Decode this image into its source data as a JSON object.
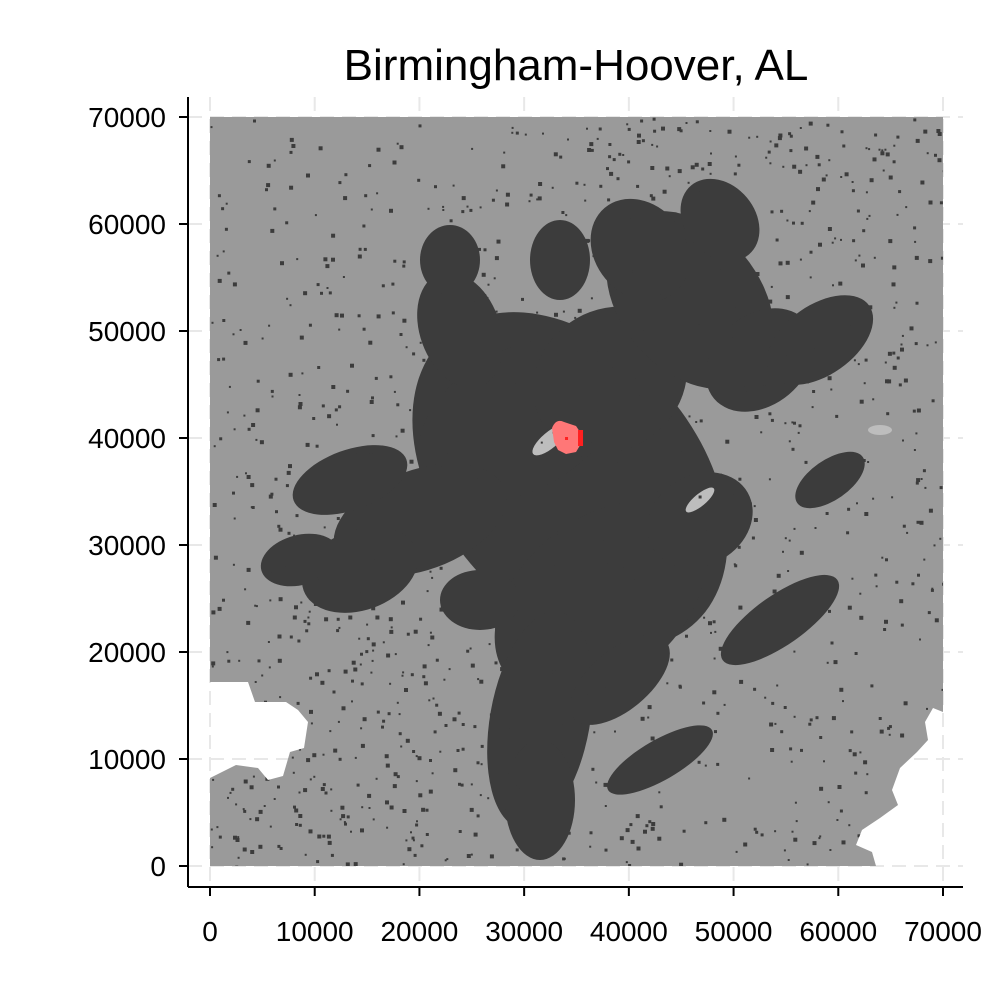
{
  "chart_data": {
    "type": "heatmap",
    "title": "Birmingham-Hoover, AL",
    "xlabel": "",
    "ylabel": "",
    "xlim": [
      0,
      70000
    ],
    "ylim": [
      0,
      70000
    ],
    "x_ticks": [
      0,
      10000,
      20000,
      30000,
      40000,
      50000,
      60000,
      70000
    ],
    "y_ticks": [
      0,
      10000,
      20000,
      30000,
      40000,
      50000,
      60000,
      70000
    ],
    "x_tick_labels": [
      "0",
      "10000",
      "20000",
      "30000",
      "40000",
      "50000",
      "60000",
      "70000"
    ],
    "y_tick_labels": [
      "0",
      "10000",
      "20000",
      "30000",
      "40000",
      "50000",
      "60000",
      "70000"
    ],
    "grid": true,
    "legend": "none",
    "colors": {
      "background_land": "#9a9a9a",
      "developed": "#3c3c3c",
      "light_patches": "#bdbdbd",
      "center_highlight": "#ff7777",
      "center_core": "#ff2020",
      "no_data": "#ffffff"
    },
    "layers": {
      "study_area": {
        "x_range": [
          0,
          70000
        ],
        "y_range": [
          0,
          70000
        ],
        "fill": "background_land"
      },
      "center": {
        "x": 34000,
        "y": 40000,
        "fill": "center_highlight"
      },
      "no_data_regions": [
        "lower-left notch",
        "lower-right notch"
      ]
    }
  }
}
